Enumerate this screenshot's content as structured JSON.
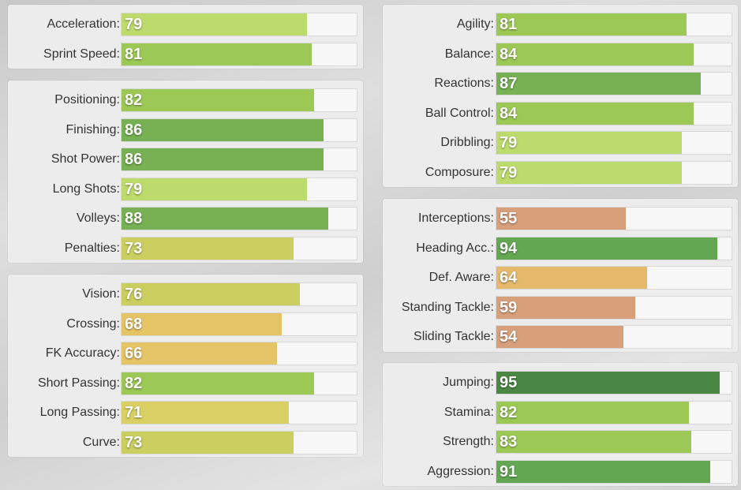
{
  "panels": [
    {
      "stats": [
        {
          "label": "Acceleration:",
          "value": 79,
          "color": "#bddb6c"
        },
        {
          "label": "Sprint Speed:",
          "value": 81,
          "color": "#9cc955"
        }
      ]
    },
    {
      "stats": [
        {
          "label": "Positioning:",
          "value": 82,
          "color": "#9cc955"
        },
        {
          "label": "Finishing:",
          "value": 86,
          "color": "#77b153"
        },
        {
          "label": "Shot Power:",
          "value": 86,
          "color": "#77b153"
        },
        {
          "label": "Long Shots:",
          "value": 79,
          "color": "#bddb6c"
        },
        {
          "label": "Volleys:",
          "value": 88,
          "color": "#77b153"
        },
        {
          "label": "Penalties:",
          "value": 73,
          "color": "#cbcf5f"
        }
      ]
    },
    {
      "stats": [
        {
          "label": "Vision:",
          "value": 76,
          "color": "#cbcf5f"
        },
        {
          "label": "Crossing:",
          "value": 68,
          "color": "#e5c465"
        },
        {
          "label": "FK Accuracy:",
          "value": 66,
          "color": "#e5c465"
        },
        {
          "label": "Short Passing:",
          "value": 82,
          "color": "#9cc955"
        },
        {
          "label": "Long Passing:",
          "value": 71,
          "color": "#d9cf62"
        },
        {
          "label": "Curve:",
          "value": 73,
          "color": "#cbcf5f"
        }
      ]
    },
    {
      "stats": [
        {
          "label": "Agility:",
          "value": 81,
          "color": "#9cc955"
        },
        {
          "label": "Balance:",
          "value": 84,
          "color": "#9cc955"
        },
        {
          "label": "Reactions:",
          "value": 87,
          "color": "#77b153"
        },
        {
          "label": "Ball Control:",
          "value": 84,
          "color": "#9cc955"
        },
        {
          "label": "Dribbling:",
          "value": 79,
          "color": "#bddb6c"
        },
        {
          "label": "Composure:",
          "value": 79,
          "color": "#bddb6c"
        }
      ]
    },
    {
      "stats": [
        {
          "label": "Interceptions:",
          "value": 55,
          "color": "#d7a07a"
        },
        {
          "label": "Heading Acc.:",
          "value": 94,
          "color": "#63a752"
        },
        {
          "label": "Def. Aware:",
          "value": 64,
          "color": "#e5b96a"
        },
        {
          "label": "Standing Tackle:",
          "value": 59,
          "color": "#d7a07a"
        },
        {
          "label": "Sliding Tackle:",
          "value": 54,
          "color": "#d7a07a"
        }
      ]
    },
    {
      "stats": [
        {
          "label": "Jumping:",
          "value": 95,
          "color": "#4a8744"
        },
        {
          "label": "Stamina:",
          "value": 82,
          "color": "#9cc955"
        },
        {
          "label": "Strength:",
          "value": 83,
          "color": "#9cc955"
        },
        {
          "label": "Aggression:",
          "value": 91,
          "color": "#63a752"
        }
      ]
    }
  ]
}
